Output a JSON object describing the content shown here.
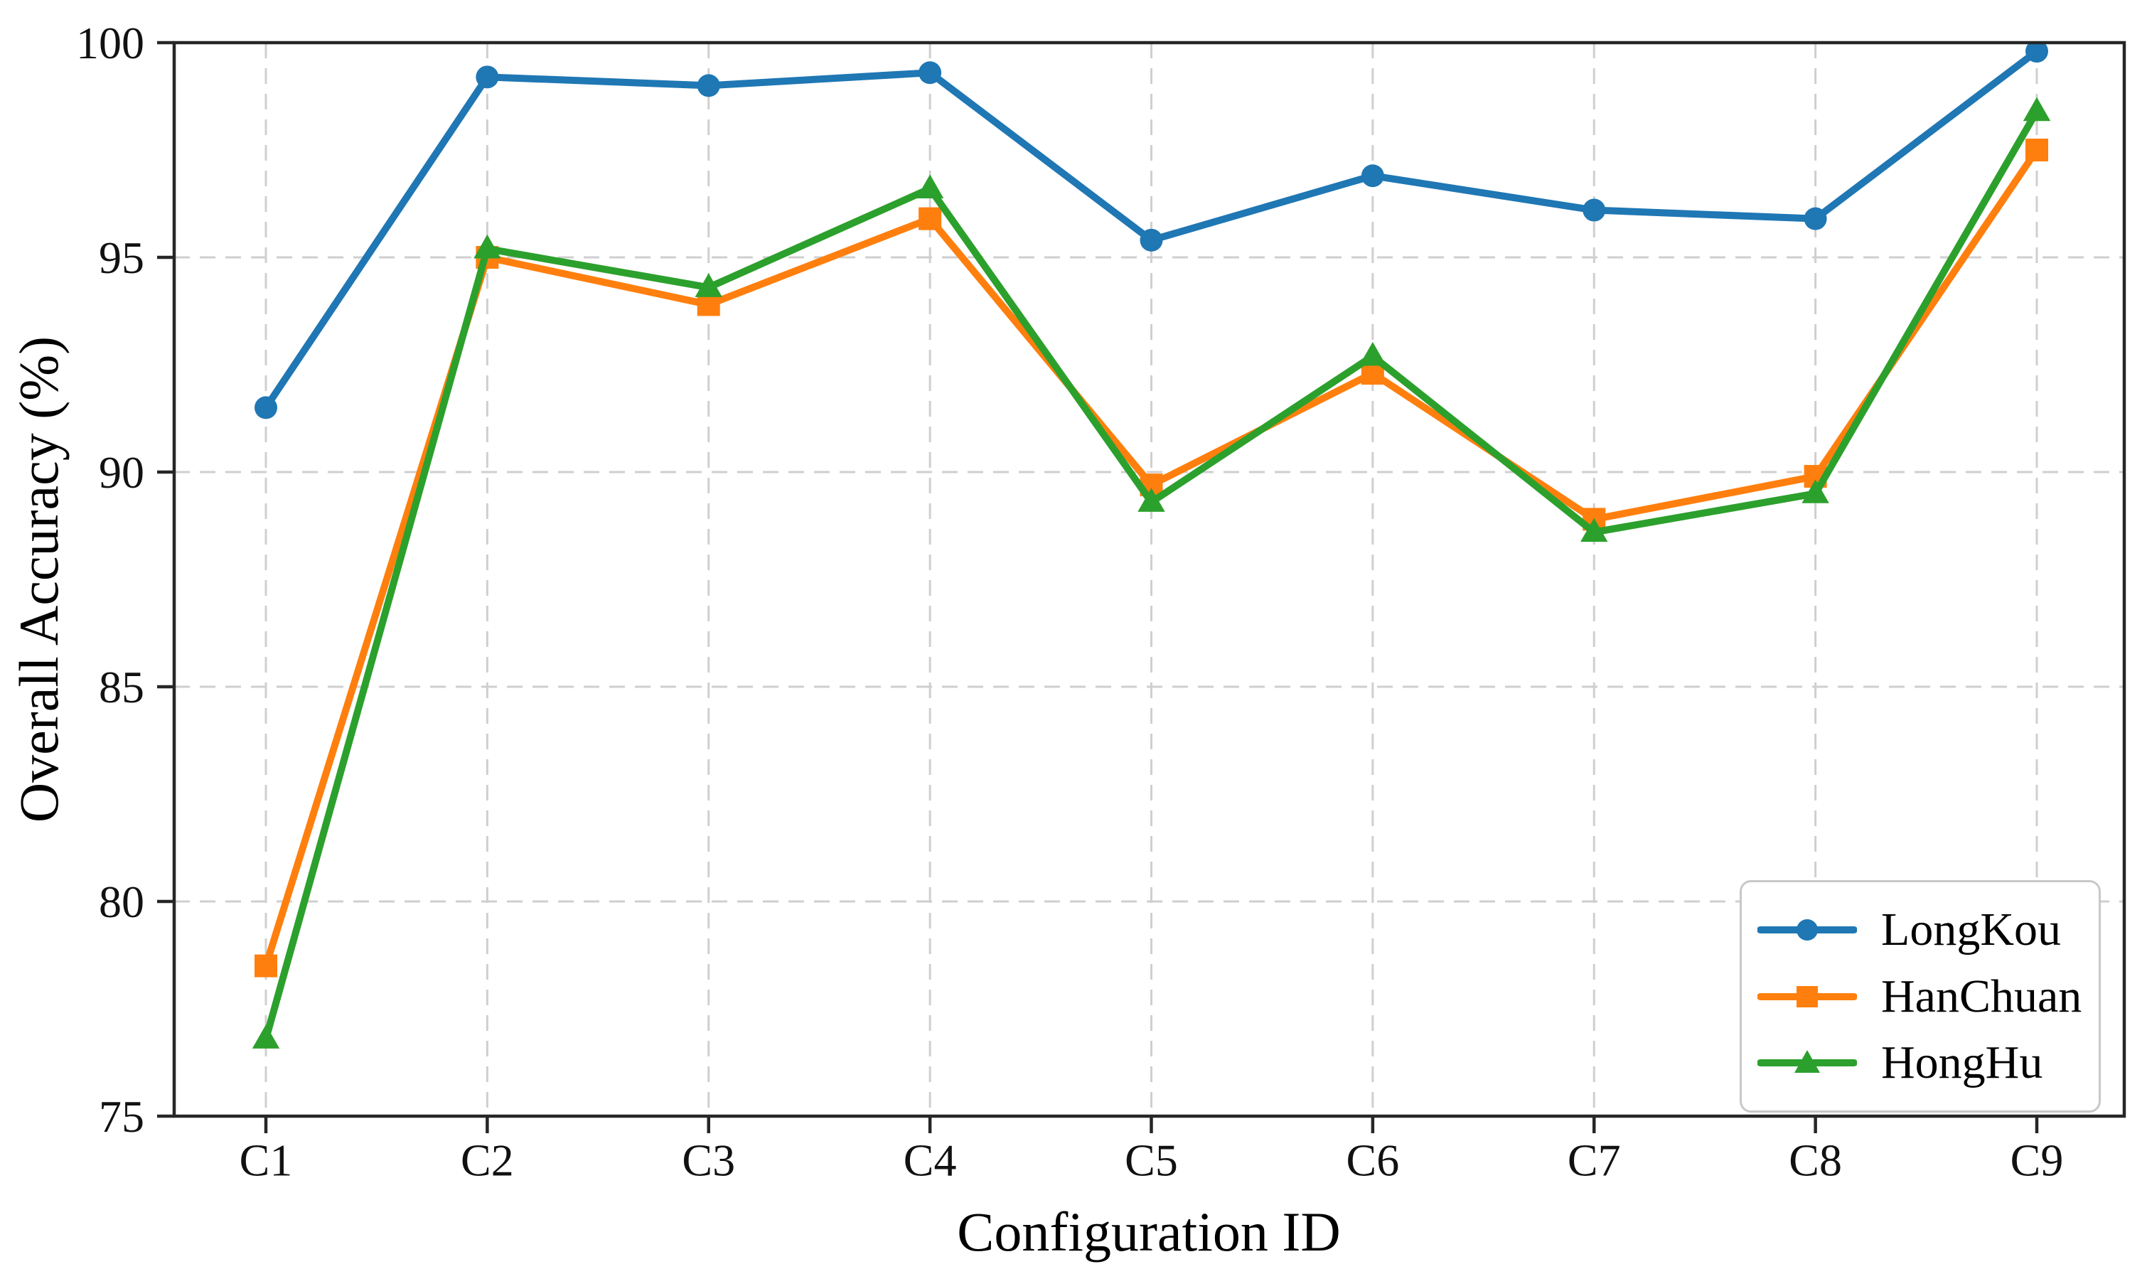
{
  "chart_data": {
    "type": "line",
    "title": "",
    "xlabel": "Configuration ID",
    "ylabel": "Overall Accuracy (%)",
    "categories": [
      "C1",
      "C2",
      "C3",
      "C4",
      "C5",
      "C6",
      "C7",
      "C8",
      "C9"
    ],
    "series": [
      {
        "name": "LongKou",
        "color": "#1f77b4",
        "marker": "circle",
        "values": [
          91.5,
          99.2,
          99.0,
          99.3,
          95.4,
          96.9,
          96.1,
          95.9,
          99.8
        ]
      },
      {
        "name": "HanChuan",
        "color": "#ff7f0e",
        "marker": "square",
        "values": [
          78.5,
          95.0,
          93.9,
          95.9,
          89.7,
          92.3,
          88.9,
          89.9,
          97.5
        ]
      },
      {
        "name": "HongHu",
        "color": "#2ca02c",
        "marker": "triangle",
        "values": [
          76.8,
          95.2,
          94.3,
          96.6,
          89.3,
          92.7,
          88.6,
          89.5,
          98.4
        ]
      }
    ],
    "ylim": [
      75,
      100
    ],
    "yticks": [
      75,
      80,
      85,
      90,
      95,
      100
    ],
    "grid": "dashed",
    "grid_color": "#cfcfcf",
    "axis_color": "#262626",
    "tick_label_color": "#111111",
    "legend_position": "lower right"
  }
}
